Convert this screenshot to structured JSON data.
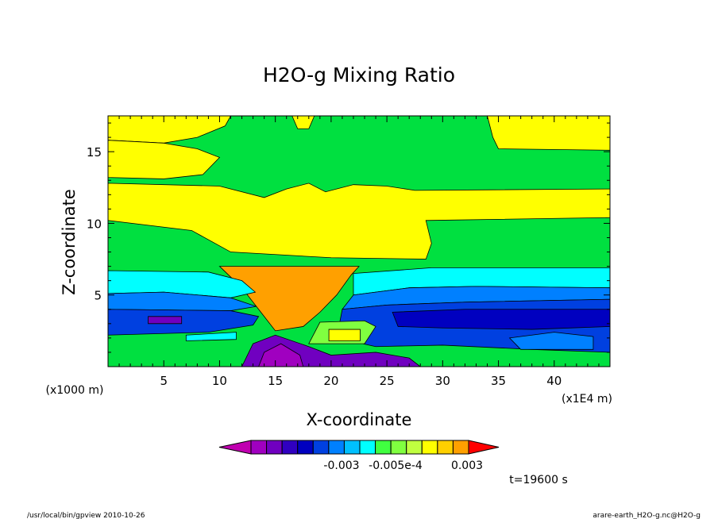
{
  "chart_data": {
    "type": "contour",
    "title": "H2O-g Mixing Ratio",
    "xlabel": "X-coordinate",
    "ylabel": "Z-coordinate",
    "x_unit_label": "(x1E4 m)",
    "y_unit_label": "(x1000 m)",
    "xlim": [
      0,
      45
    ],
    "ylim": [
      0,
      17.5
    ],
    "x_ticks": [
      {
        "value": 5,
        "label": "5"
      },
      {
        "value": 10,
        "label": "10"
      },
      {
        "value": 15,
        "label": "15"
      },
      {
        "value": 20,
        "label": "20"
      },
      {
        "value": 25,
        "label": "25"
      },
      {
        "value": 30,
        "label": "30"
      },
      {
        "value": 35,
        "label": "35"
      },
      {
        "value": 40,
        "label": "40"
      }
    ],
    "y_ticks": [
      {
        "value": 5,
        "label": "5"
      },
      {
        "value": 10,
        "label": "10"
      },
      {
        "value": 15,
        "label": "15"
      }
    ],
    "colorbar": {
      "colors": [
        "#c000b0",
        "#a000c0",
        "#7000c0",
        "#3000c0",
        "#0000c0",
        "#0040e0",
        "#0080ff",
        "#00c0ff",
        "#00ffff",
        "#40ff40",
        "#80ff40",
        "#c0ff40",
        "#ffff00",
        "#ffd000",
        "#ffa000",
        "#ff0000"
      ],
      "tick_labels": [
        "-0.003",
        "-0.005e-4",
        "0.003"
      ]
    },
    "time_label": "t=19600 s"
  },
  "footer": {
    "left": "/usr/local/bin/gpview  2010-10-26",
    "right": "arare-earth_H2O-g.nc@H2O-g"
  },
  "fills": {
    "green": "#00e040",
    "yellow": "#ffff00",
    "orange": "#ffa000",
    "cyan": "#00ffff",
    "blue_light": "#0080ff",
    "blue": "#0040e0",
    "blue_dark": "#0000c0",
    "purple": "#7000c0",
    "magenta": "#a000c0",
    "lime": "#80ff40"
  }
}
